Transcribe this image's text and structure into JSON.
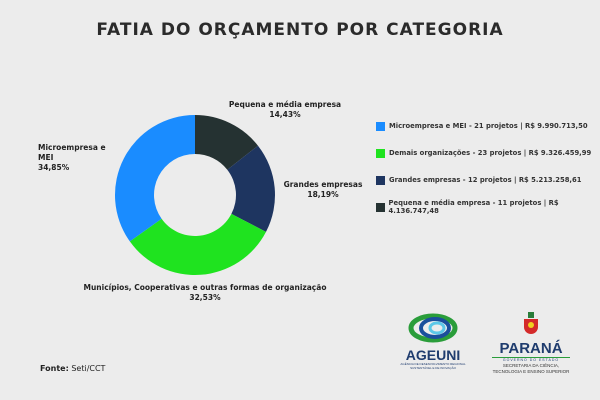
{
  "chart_data": {
    "type": "pie",
    "title": "FATIA DO ORÇAMENTO POR CATEGORIA",
    "donut": true,
    "slices": [
      {
        "label": "Pequena e média empresa",
        "percent_label": "14,43%",
        "value": 14.43,
        "color": "#253232"
      },
      {
        "label": "Grandes empresas",
        "percent_label": "18,19%",
        "value": 18.19,
        "color": "#1e3560"
      },
      {
        "label": "Municípios, Cooperativas e outras formas de organização",
        "percent_label": "32,53%",
        "value": 32.53,
        "color": "#1fe31f"
      },
      {
        "label": "Microempresa e MEI",
        "percent_label": "34,85%",
        "value": 34.85,
        "color": "#1a8cff"
      }
    ],
    "legend": [
      {
        "text": "Microempresa e MEI -  21 projetos | R$ 9.990.713,50",
        "color": "#1a8cff"
      },
      {
        "text": "Demais organizações - 23  projetos | R$ 9.326.459,99",
        "color": "#1fe31f"
      },
      {
        "text": "Grandes empresas - 12 projetos | R$ 5.213.258,61",
        "color": "#1e3560"
      },
      {
        "text": "Pequena e média empresa - 11 projetos | R$ 4.136.747,48",
        "color": "#253232"
      }
    ],
    "legend_position": "right"
  },
  "source": {
    "label": "Fonte:",
    "value": "Seti/CCT"
  },
  "logos": {
    "ageuni": {
      "name": "AGEUNI",
      "subtitle": "AGÊNCIA DE DESENVOLVIMENTO REGIONAL SUSTENTÁVEL E DE INOVAÇÃO"
    },
    "parana": {
      "name": "PARANÁ",
      "tagline": "GOVERNO DO ESTADO",
      "subtitle_1": "SECRETARIA DA CIÊNCIA,",
      "subtitle_2": "TECNOLOGIA E ENSINO SUPERIOR"
    }
  }
}
